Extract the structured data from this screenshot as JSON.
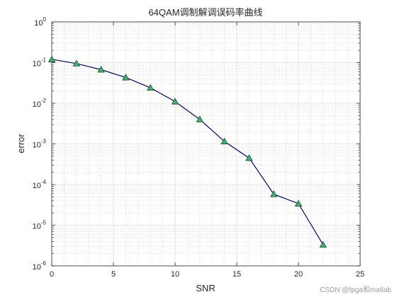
{
  "chart_data": {
    "type": "line",
    "title": "64QAM调制解调误码率曲线",
    "xlabel": "SNR",
    "ylabel": "error",
    "xlim": [
      0,
      25
    ],
    "ylim": [
      1e-06,
      1
    ],
    "yscale": "log",
    "grid": true,
    "minor_grid": true,
    "x_ticks": [
      0,
      5,
      10,
      15,
      20,
      25
    ],
    "x_tick_labels": [
      "0",
      "5",
      "10",
      "15",
      "20",
      "25"
    ],
    "y_tick_exponents": [
      -6,
      -5,
      -4,
      -3,
      -2,
      -1,
      0
    ],
    "y_tick_base": "10",
    "series": [
      {
        "x": [
          0,
          2,
          4,
          6,
          8,
          10,
          12,
          14,
          16,
          18,
          20,
          22
        ],
        "y": [
          0.12,
          0.095,
          0.067,
          0.043,
          0.024,
          0.011,
          0.004,
          0.00115,
          0.00045,
          5.8e-05,
          3.4e-05,
          3.3e-06
        ],
        "line_color": "#000080",
        "marker": "triangle",
        "marker_fill": "#3cb371",
        "marker_edge": "#1a4d2e"
      }
    ]
  },
  "watermark": "CSDN @fpga和matlab"
}
